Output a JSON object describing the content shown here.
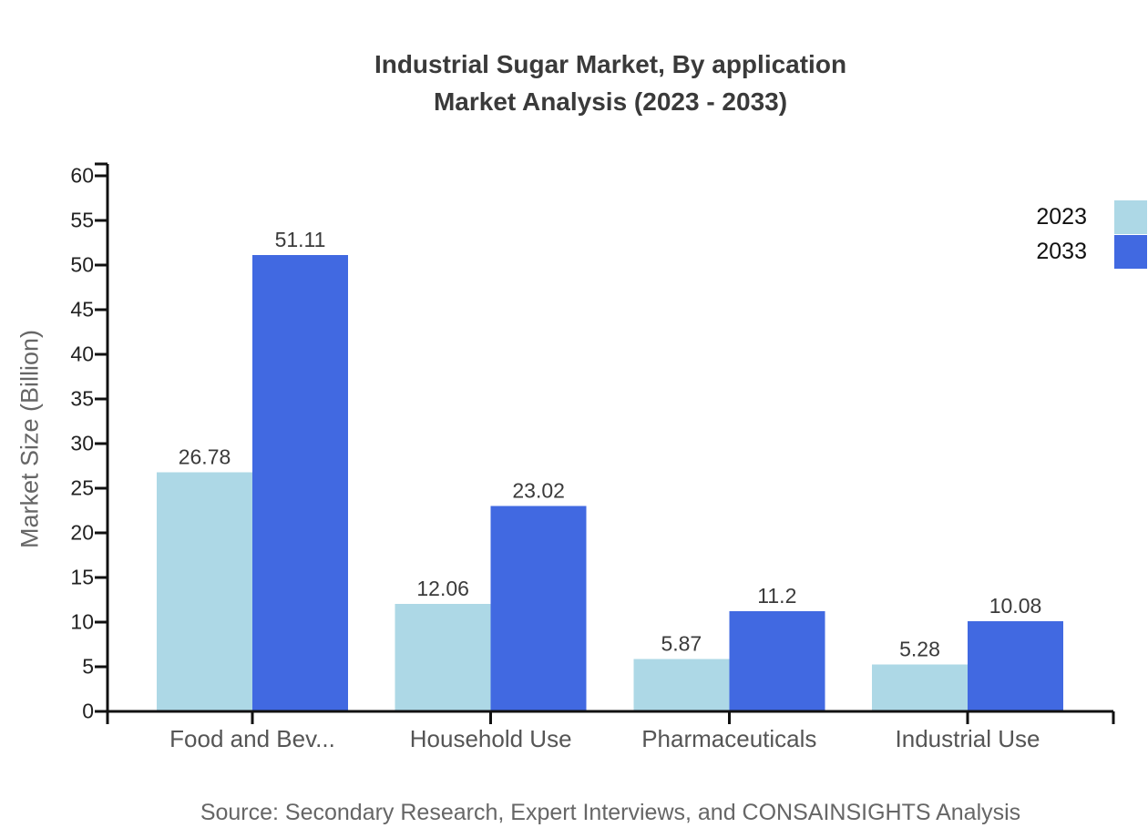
{
  "title": {
    "line1": "Industrial Sugar Market, By application",
    "line2": "Market Analysis (2023 - 2033)"
  },
  "source": "Source: Secondary Research, Expert Interviews, and CONSAINSIGHTS Analysis",
  "chart_data": {
    "type": "bar",
    "title": "Industrial Sugar Market, By application Market Analysis (2023 - 2033)",
    "categories": [
      "Food and Bev...",
      "Household Use",
      "Pharmaceuticals",
      "Industrial Use"
    ],
    "series": [
      {
        "name": "2023",
        "color": "#ADD8E6",
        "values": [
          26.78,
          12.06,
          5.87,
          5.28
        ]
      },
      {
        "name": "2033",
        "color": "#4169E1",
        "values": [
          51.11,
          23.02,
          11.2,
          10.08
        ]
      }
    ],
    "xlabel": "",
    "ylabel": "Market Size (Billion)",
    "ylim": [
      0,
      60
    ],
    "yticks": [
      0,
      5,
      10,
      15,
      20,
      25,
      30,
      35,
      40,
      45,
      50,
      55,
      60
    ],
    "grid": false,
    "legend_position": "top-right",
    "value_labels": true
  },
  "colors": {
    "axis": "#111111",
    "y_tick_label": "#222222",
    "category_label": "#555555",
    "value_label": "#3a3a3a"
  }
}
